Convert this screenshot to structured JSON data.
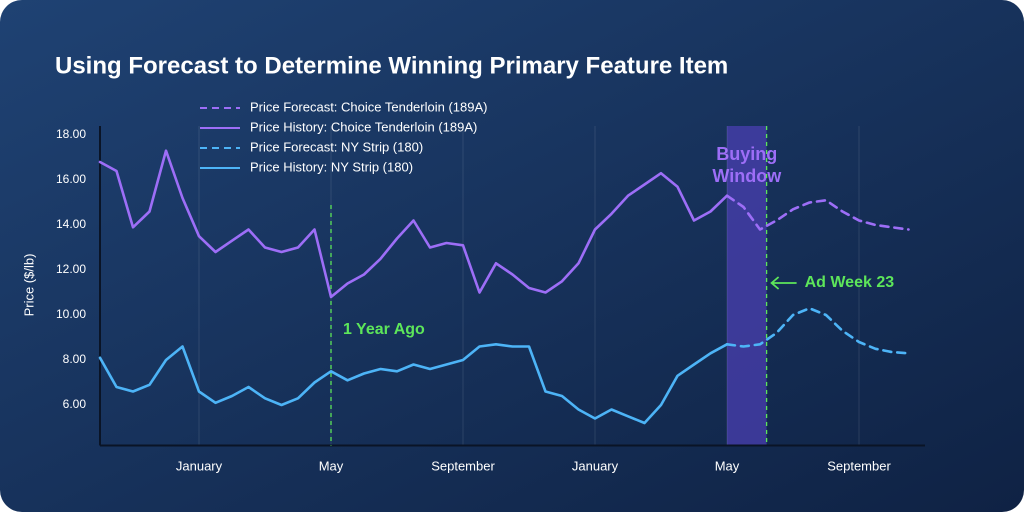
{
  "chart_data": {
    "type": "line",
    "title": "Using Forecast to Determine Winning Primary Feature Item",
    "y_label": "Price ($/lb)",
    "x": [
      0,
      0.5,
      1,
      1.5,
      2,
      2.5,
      3,
      3.5,
      4,
      4.5,
      5,
      5.5,
      6,
      6.5,
      7,
      7.5,
      8,
      8.5,
      9,
      9.5,
      10,
      10.5,
      11,
      11.5,
      12,
      12.5,
      13,
      13.5,
      14,
      14.5,
      15,
      15.5,
      16,
      16.5,
      17,
      17.5,
      18,
      18.5,
      19,
      19.5,
      20,
      20.5,
      21,
      21.5,
      22,
      22.5,
      23,
      23.5,
      24,
      24.5
    ],
    "xlim": [
      0,
      25
    ],
    "xticks": [
      {
        "value": 3,
        "label": "January"
      },
      {
        "value": 7,
        "label": "May"
      },
      {
        "value": 11,
        "label": "September"
      },
      {
        "value": 15,
        "label": "January"
      },
      {
        "value": 19,
        "label": "May"
      },
      {
        "value": 23,
        "label": "September"
      }
    ],
    "ylim": [
      4.2,
      18.4
    ],
    "yticks": [
      {
        "value": 6,
        "label": "6.00"
      },
      {
        "value": 8,
        "label": "8.00"
      },
      {
        "value": 10,
        "label": "10.00"
      },
      {
        "value": 12,
        "label": "12.00"
      },
      {
        "value": 14,
        "label": "14.00"
      },
      {
        "value": 16,
        "label": "16.00"
      },
      {
        "value": 18,
        "label": "18.00"
      }
    ],
    "grid": true,
    "legend": "top-left",
    "series": [
      {
        "name": "Price Forecast: Choice Tenderloin (189A)",
        "color": "#9d6ef7",
        "style": "dashed",
        "values": [
          null,
          null,
          null,
          null,
          null,
          null,
          null,
          null,
          null,
          null,
          null,
          null,
          null,
          null,
          null,
          null,
          null,
          null,
          null,
          null,
          null,
          null,
          null,
          null,
          null,
          null,
          null,
          null,
          null,
          null,
          null,
          null,
          null,
          null,
          null,
          null,
          null,
          null,
          15.3,
          14.8,
          13.8,
          14.2,
          14.7,
          15.0,
          15.1,
          14.6,
          14.2,
          14.0,
          13.9,
          13.8
        ]
      },
      {
        "name": "Price History: Choice Tenderloin (189A)",
        "color": "#9d6ef7",
        "style": "solid",
        "values": [
          16.8,
          16.4,
          13.9,
          14.6,
          17.3,
          15.2,
          13.5,
          12.8,
          13.3,
          13.8,
          13.0,
          12.8,
          13.0,
          13.8,
          10.8,
          11.4,
          11.8,
          12.5,
          13.4,
          14.2,
          13.0,
          13.2,
          13.1,
          11.0,
          12.3,
          11.8,
          11.2,
          11.0,
          11.5,
          12.3,
          13.8,
          14.5,
          15.3,
          15.8,
          16.3,
          15.7,
          14.2,
          14.6,
          15.3,
          null,
          null,
          null,
          null,
          null,
          null,
          null,
          null,
          null,
          null,
          null
        ]
      },
      {
        "name": "Price Forecast: NY Strip (180)",
        "color": "#4db4f7",
        "style": "dashed",
        "values": [
          null,
          null,
          null,
          null,
          null,
          null,
          null,
          null,
          null,
          null,
          null,
          null,
          null,
          null,
          null,
          null,
          null,
          null,
          null,
          null,
          null,
          null,
          null,
          null,
          null,
          null,
          null,
          null,
          null,
          null,
          null,
          null,
          null,
          null,
          null,
          null,
          null,
          null,
          8.7,
          8.6,
          8.7,
          9.2,
          10.0,
          10.3,
          10.0,
          9.3,
          8.8,
          8.5,
          8.35,
          8.3
        ]
      },
      {
        "name": "Price History: NY Strip (180)",
        "color": "#4db4f7",
        "style": "solid",
        "values": [
          8.1,
          6.8,
          6.6,
          6.9,
          8.0,
          8.6,
          6.6,
          6.1,
          6.4,
          6.8,
          6.3,
          6.0,
          6.3,
          7.0,
          7.5,
          7.1,
          7.4,
          7.6,
          7.5,
          7.8,
          7.6,
          7.8,
          8.0,
          8.6,
          8.7,
          8.6,
          8.6,
          6.6,
          6.4,
          5.8,
          5.4,
          5.8,
          5.5,
          5.2,
          6.0,
          7.3,
          7.8,
          8.3,
          8.7,
          null,
          null,
          null,
          null,
          null,
          null,
          null,
          null,
          null,
          null,
          null
        ]
      }
    ],
    "annotations": {
      "year_ago": {
        "text": "1 Year Ago",
        "x": 7,
        "color": "#5de65a"
      },
      "buying_window": {
        "lines": [
          "Buying",
          "Window"
        ],
        "x0": 19,
        "x1": 20.2,
        "color": "#9d6ef7"
      },
      "ad_week": {
        "text": "Ad Week 23",
        "x": 20.2,
        "color": "#5de65a"
      }
    }
  }
}
